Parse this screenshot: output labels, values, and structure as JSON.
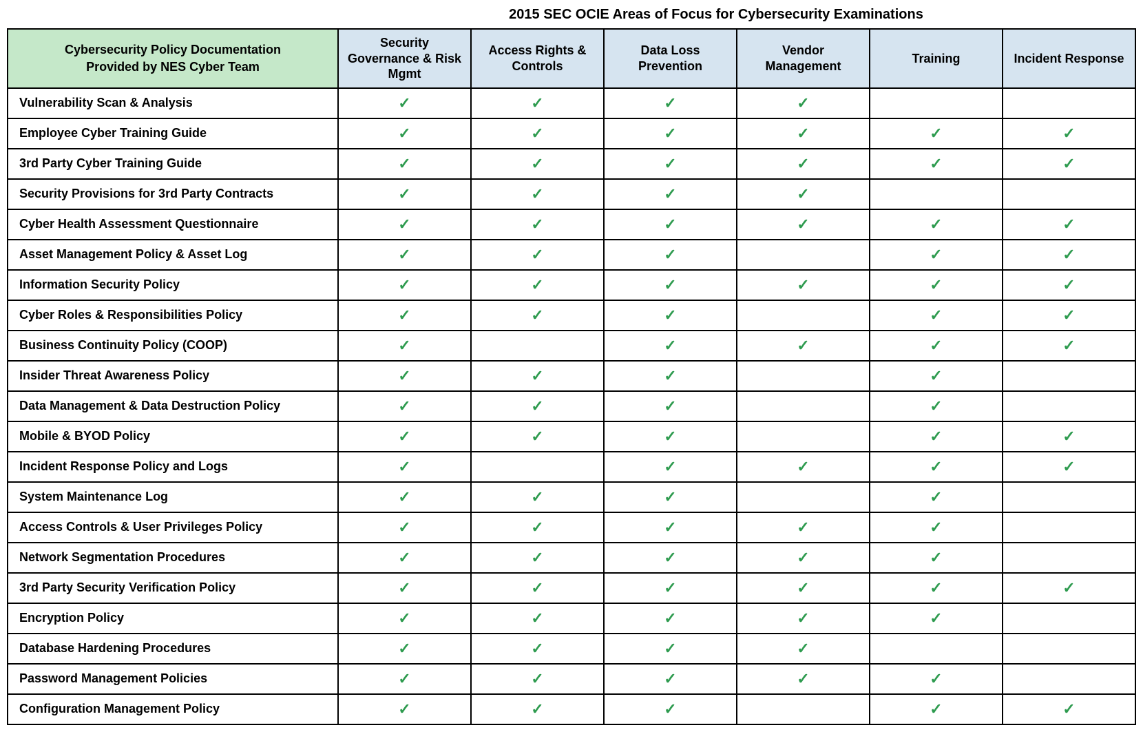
{
  "title": "2015 SEC OCIE Areas of Focus for Cybersecurity Examinations",
  "rowHeader": "Cybersecurity Policy Documentation\nProvided by NES Cyber Team",
  "columns": [
    "Security Governance & Risk Mgmt",
    "Access Rights & Controls",
    "Data Loss Prevention",
    "Vendor Management",
    "Training",
    "Incident Response"
  ],
  "checkGlyph": "✓",
  "colors": {
    "rowHeaderBg": "#c5e8c9",
    "colHeaderBg": "#d6e4f0",
    "checkColor": "#2e9b4f",
    "border": "#000000",
    "background": "#ffffff"
  },
  "typography": {
    "titleFontSize": 20,
    "headerFontSize": 18,
    "cellFontSize": 18,
    "checkFontSize": 22,
    "fontFamily": "Arial"
  },
  "layout": {
    "firstColWidthPx": 480,
    "borderWidthPx": 2,
    "titleOffsetLeftPx": 420
  },
  "rows": [
    {
      "label": "Vulnerability Scan & Analysis",
      "checks": [
        true,
        true,
        true,
        true,
        false,
        false
      ]
    },
    {
      "label": "Employee Cyber Training Guide",
      "checks": [
        true,
        true,
        true,
        true,
        true,
        true
      ]
    },
    {
      "label": "3rd Party Cyber Training Guide",
      "checks": [
        true,
        true,
        true,
        true,
        true,
        true
      ]
    },
    {
      "label": "Security Provisions for 3rd Party Contracts",
      "checks": [
        true,
        true,
        true,
        true,
        false,
        false
      ]
    },
    {
      "label": "Cyber Health Assessment Questionnaire",
      "checks": [
        true,
        true,
        true,
        true,
        true,
        true
      ]
    },
    {
      "label": "Asset Management Policy & Asset Log",
      "checks": [
        true,
        true,
        true,
        false,
        true,
        true
      ]
    },
    {
      "label": "Information Security Policy",
      "checks": [
        true,
        true,
        true,
        true,
        true,
        true
      ]
    },
    {
      "label": "Cyber Roles & Responsibilities Policy",
      "checks": [
        true,
        true,
        true,
        false,
        true,
        true
      ]
    },
    {
      "label": "Business Continuity Policy (COOP)",
      "checks": [
        true,
        false,
        true,
        true,
        true,
        true
      ]
    },
    {
      "label": "Insider Threat Awareness Policy",
      "checks": [
        true,
        true,
        true,
        false,
        true,
        false
      ]
    },
    {
      "label": "Data Management & Data Destruction Policy",
      "checks": [
        true,
        true,
        true,
        false,
        true,
        false
      ]
    },
    {
      "label": "Mobile & BYOD Policy",
      "checks": [
        true,
        true,
        true,
        false,
        true,
        true
      ]
    },
    {
      "label": "Incident Response Policy and Logs",
      "checks": [
        true,
        false,
        true,
        true,
        true,
        true
      ]
    },
    {
      "label": "System Maintenance Log",
      "checks": [
        true,
        true,
        true,
        false,
        true,
        false
      ]
    },
    {
      "label": "Access Controls & User Privileges Policy",
      "checks": [
        true,
        true,
        true,
        true,
        true,
        false
      ]
    },
    {
      "label": "Network Segmentation Procedures",
      "checks": [
        true,
        true,
        true,
        true,
        true,
        false
      ]
    },
    {
      "label": "3rd Party Security Verification Policy",
      "checks": [
        true,
        true,
        true,
        true,
        true,
        true
      ]
    },
    {
      "label": "Encryption Policy",
      "checks": [
        true,
        true,
        true,
        true,
        true,
        false
      ]
    },
    {
      "label": "Database Hardening Procedures",
      "checks": [
        true,
        true,
        true,
        true,
        false,
        false
      ]
    },
    {
      "label": "Password Management Policies",
      "checks": [
        true,
        true,
        true,
        true,
        true,
        false
      ]
    },
    {
      "label": "Configuration Management Policy",
      "checks": [
        true,
        true,
        true,
        false,
        true,
        true
      ]
    }
  ]
}
